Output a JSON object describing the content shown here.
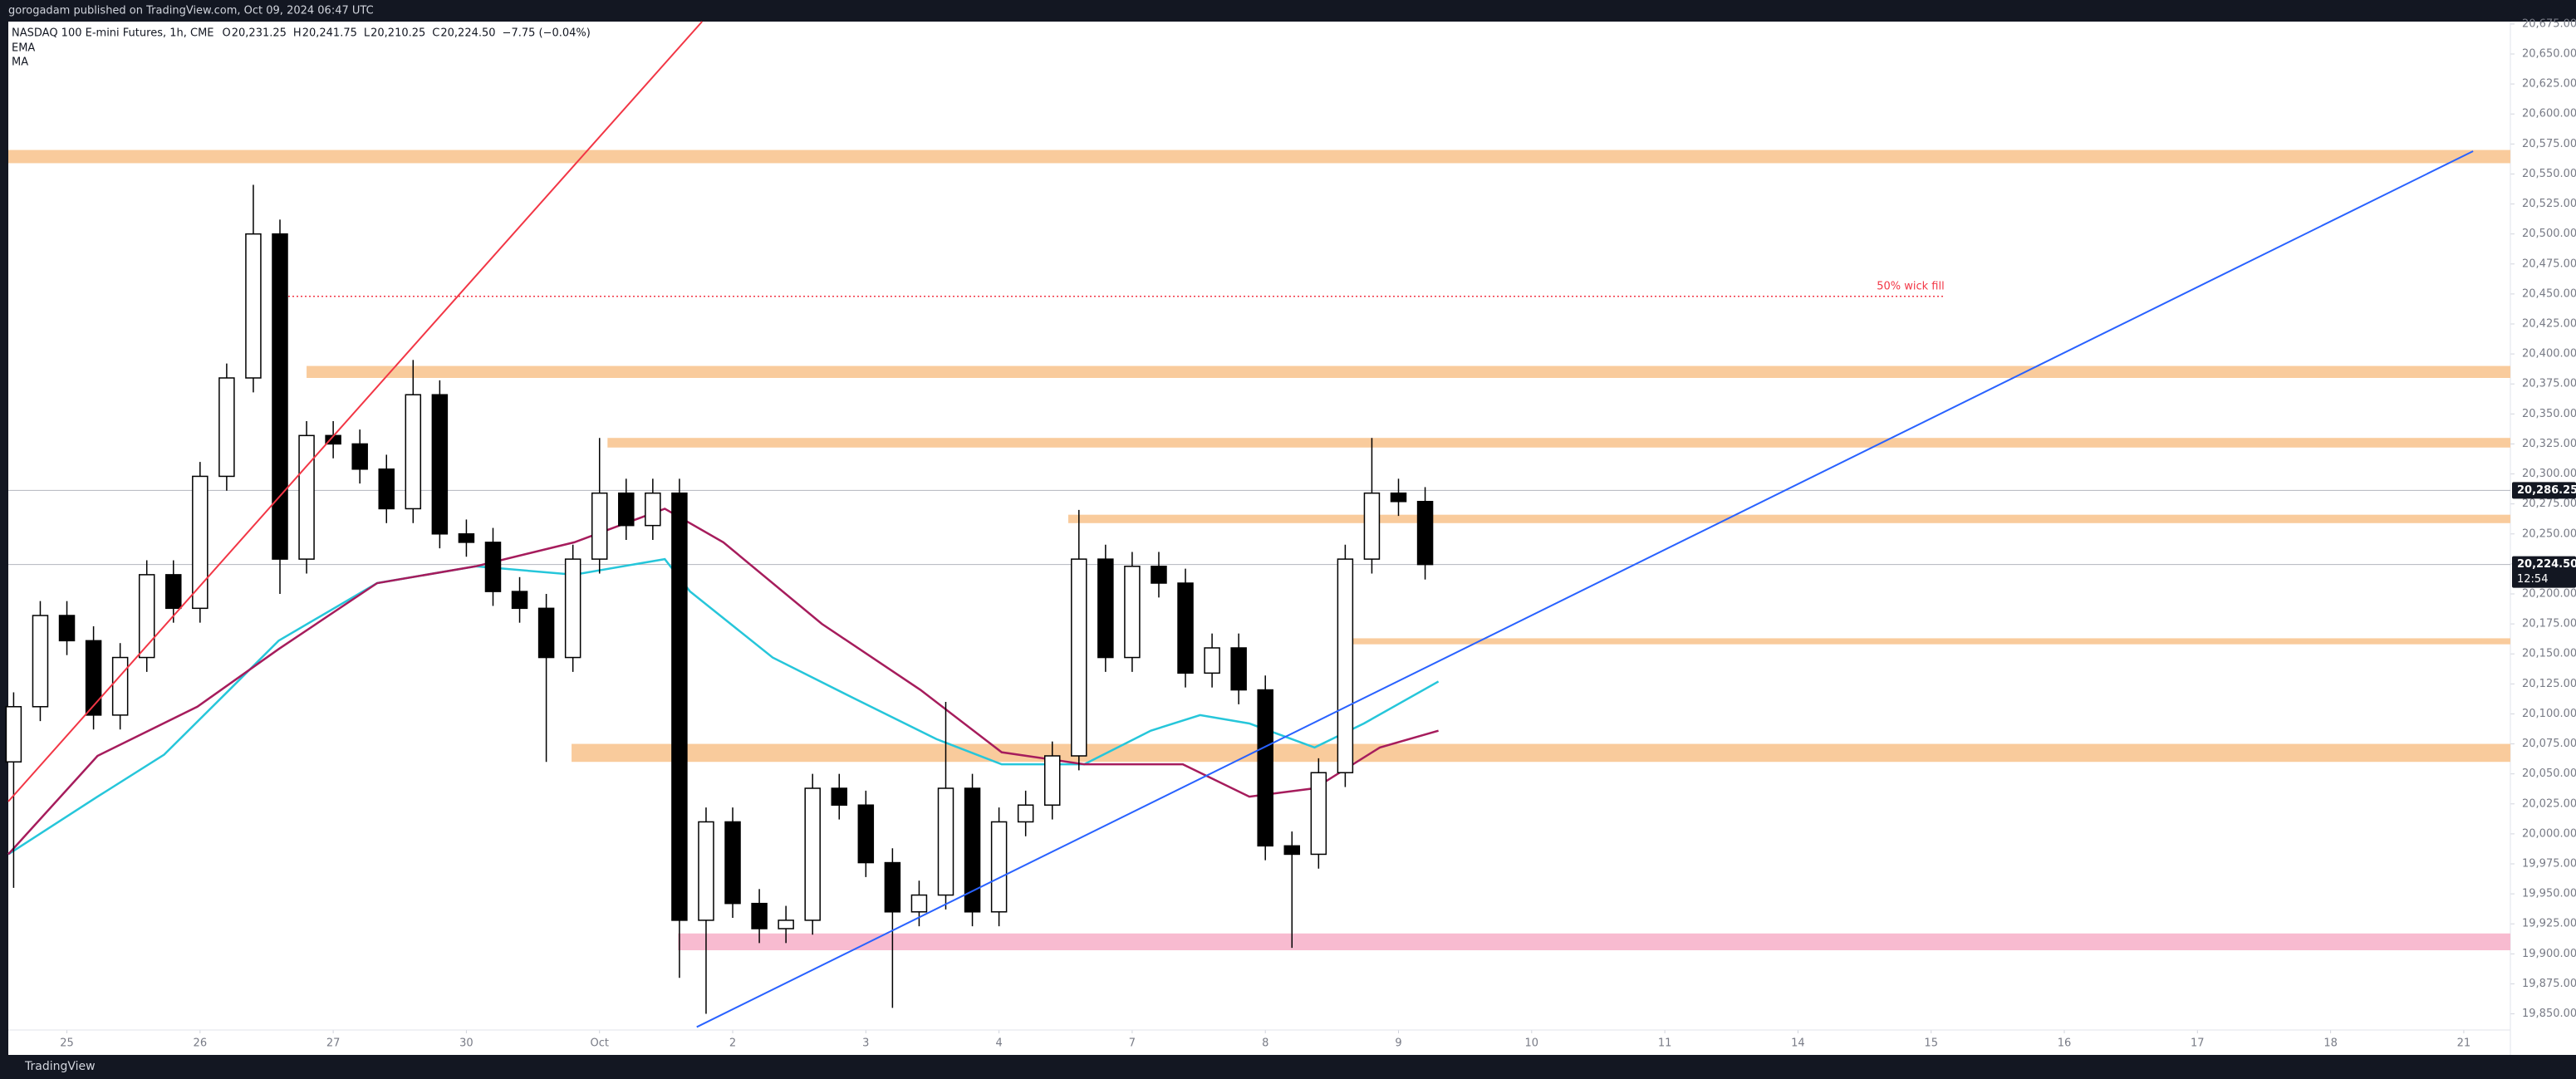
{
  "chart_data": {
    "type": "candlestick",
    "publisher": "gorogadam published on TradingView.com, Oct 09, 2024 06:47 UTC",
    "symbol": "NASDAQ 100 E-mini Futures, 1h, CME",
    "ohlc": [
      {
        "key": "O",
        "text": "20,231.25"
      },
      {
        "key": "H",
        "text": "20,241.75"
      },
      {
        "key": "L",
        "text": "20,210.25"
      },
      {
        "key": "C",
        "text": "20,224.50"
      }
    ],
    "change": "−7.75 (−0.04%)",
    "brand": "TradingView",
    "xlim": [
      -0.44,
      18.35
    ],
    "ylim": [
      19840,
      20677
    ],
    "xticks": [
      {
        "value": 0,
        "label": "25"
      },
      {
        "value": 1,
        "label": "26"
      },
      {
        "value": 2,
        "label": "27"
      },
      {
        "value": 3,
        "label": "30"
      },
      {
        "value": 4,
        "label": "Oct"
      },
      {
        "value": 5,
        "label": "2"
      },
      {
        "value": 6,
        "label": "3"
      },
      {
        "value": 7,
        "label": "4"
      },
      {
        "value": 8,
        "label": "7"
      },
      {
        "value": 9,
        "label": "8"
      },
      {
        "value": 10,
        "label": "9"
      },
      {
        "value": 11,
        "label": "10"
      },
      {
        "value": 12,
        "label": "11"
      },
      {
        "value": 13,
        "label": "14"
      },
      {
        "value": 14,
        "label": "15"
      },
      {
        "value": 15,
        "label": "16"
      },
      {
        "value": 16,
        "label": "17"
      },
      {
        "value": 17,
        "label": "18"
      },
      {
        "value": 18,
        "label": "21"
      }
    ],
    "yticks": [
      {
        "value": 19850,
        "label": "19,850.00"
      },
      {
        "value": 19875,
        "label": "19,875.00"
      },
      {
        "value": 19900,
        "label": "19,900.00"
      },
      {
        "value": 19925,
        "label": "19,925.00"
      },
      {
        "value": 19950,
        "label": "19,950.00"
      },
      {
        "value": 19975,
        "label": "19,975.00"
      },
      {
        "value": 20000,
        "label": "20,000.00"
      },
      {
        "value": 20025,
        "label": "20,025.00"
      },
      {
        "value": 20050,
        "label": "20,050.00"
      },
      {
        "value": 20075,
        "label": "20,075.00"
      },
      {
        "value": 20100,
        "label": "20,100.00"
      },
      {
        "value": 20125,
        "label": "20,125.00"
      },
      {
        "value": 20150,
        "label": "20,150.00"
      },
      {
        "value": 20175,
        "label": "20,175.00"
      },
      {
        "value": 20200,
        "label": "20,200.00"
      },
      {
        "value": 20225,
        "label": "20,225.00"
      },
      {
        "value": 20250,
        "label": "20,250.00"
      },
      {
        "value": 20275,
        "label": "20,275.00"
      },
      {
        "value": 20300,
        "label": "20,300.00"
      },
      {
        "value": 20325,
        "label": "20,325.00"
      },
      {
        "value": 20350,
        "label": "20,350.00"
      },
      {
        "value": 20375,
        "label": "20,375.00"
      },
      {
        "value": 20400,
        "label": "20,400.00"
      },
      {
        "value": 20425,
        "label": "20,425.00"
      },
      {
        "value": 20450,
        "label": "20,450.00"
      },
      {
        "value": 20475,
        "label": "20,475.00"
      },
      {
        "value": 20500,
        "label": "20,500.00"
      },
      {
        "value": 20525,
        "label": "20,525.00"
      },
      {
        "value": 20550,
        "label": "20,550.00"
      },
      {
        "value": 20575,
        "label": "20,575.00"
      },
      {
        "value": 20600,
        "label": "20,600.00"
      },
      {
        "value": 20625,
        "label": "20,625.00"
      },
      {
        "value": 20650,
        "label": "20,650.00"
      },
      {
        "value": 20675,
        "label": "20,675.00"
      }
    ],
    "candles": {
      "up_color": "#ffffff",
      "down_color": "#000000",
      "border_color": "#000000",
      "x": [
        -0.4,
        -0.2,
        0,
        0.2,
        0.4,
        0.6,
        0.8,
        1.0,
        1.2,
        1.4,
        1.6,
        1.8,
        2.0,
        2.2,
        2.4,
        2.6,
        2.8,
        3.0,
        3.2,
        3.4,
        3.6,
        3.8,
        4.0,
        4.2,
        4.4,
        4.6,
        4.8,
        5.0,
        5.2,
        5.4,
        5.6,
        5.8,
        6.0,
        6.2,
        6.4,
        6.6,
        6.8,
        7.0,
        7.2,
        7.4,
        7.6,
        7.8,
        8.0,
        8.2,
        8.4,
        8.6,
        8.8,
        9.0,
        9.2,
        9.4,
        9.6,
        9.8,
        10.0,
        10.2
      ],
      "open": [
        20060,
        20106,
        20182,
        20161,
        20099,
        20147,
        20216,
        20188,
        20298,
        20380,
        20500,
        20229,
        20332,
        20325,
        20304,
        20271,
        20366,
        20250,
        20243,
        20202,
        20188,
        20147,
        20229,
        20284,
        20257,
        20284,
        19928,
        20010,
        19942,
        19921,
        19928,
        20038,
        20024,
        19976,
        19935,
        19949,
        20038,
        19935,
        20010,
        20024,
        20065,
        20229,
        20147,
        20223,
        20209,
        20134,
        20155,
        20120,
        19990,
        19983,
        20051,
        20229,
        20284,
        20277
      ],
      "high": [
        20118,
        20194,
        20194,
        20173,
        20159,
        20228,
        20228,
        20310,
        20392,
        20541,
        20512,
        20344,
        20344,
        20337,
        20316,
        20395,
        20378,
        20262,
        20255,
        20214,
        20200,
        20241,
        20330,
        20296,
        20296,
        20296,
        20022,
        20022,
        19954,
        19940,
        20050,
        20050,
        20036,
        19988,
        19961,
        20110,
        20050,
        20022,
        20036,
        20077,
        20270,
        20241,
        20235,
        20235,
        20221,
        20167,
        20167,
        20132,
        20002,
        20063,
        20241,
        20330,
        20296,
        20289
      ],
      "low": [
        19955,
        20094,
        20149,
        20087,
        20087,
        20135,
        20176,
        20176,
        20286,
        20368,
        20200,
        20217,
        20313,
        20292,
        20259,
        20259,
        20238,
        20231,
        20190,
        20176,
        20060,
        20135,
        20217,
        20245,
        20245,
        19880,
        19850,
        19930,
        19909,
        19909,
        19916,
        20012,
        19964,
        19855,
        19923,
        19937,
        19923,
        19923,
        19998,
        20012,
        20053,
        20135,
        20135,
        20197,
        20122,
        20122,
        20108,
        19978,
        19905,
        19971,
        20039,
        20217,
        20265,
        20212
      ],
      "close": [
        20106,
        20182,
        20161,
        20099,
        20147,
        20216,
        20188,
        20298,
        20380,
        20500,
        20229,
        20332,
        20325,
        20304,
        20271,
        20366,
        20250,
        20243,
        20202,
        20188,
        20147,
        20229,
        20284,
        20257,
        20284,
        19928,
        20010,
        19942,
        19921,
        19928,
        20038,
        20024,
        19976,
        19935,
        19949,
        20038,
        19935,
        20010,
        20024,
        20065,
        20229,
        20147,
        20223,
        20209,
        20134,
        20155,
        20120,
        19990,
        19983,
        20051,
        20229,
        20284,
        20277,
        20224.5
      ]
    },
    "series": [
      {
        "name": "EMA",
        "color": "#26c6da",
        "x": [
          -0.44,
          0.23,
          0.73,
          1.22,
          1.59,
          2.33,
          3.07,
          3.81,
          4.49,
          4.68,
          5.3,
          5.91,
          6.53,
          7.02,
          7.64,
          8.14,
          8.51,
          8.88,
          9.37,
          9.74,
          10.3
        ],
        "values": [
          19983,
          20031,
          20066,
          20120,
          20161,
          20209,
          20223,
          20216,
          20229,
          20202,
          20147,
          20113,
          20079,
          20058,
          20058,
          20086,
          20099,
          20092,
          20072,
          20092,
          20127
        ]
      },
      {
        "name": "MA",
        "color": "#a61c5c",
        "x": [
          -0.44,
          0.23,
          0.98,
          1.59,
          2.33,
          3.07,
          3.81,
          4.49,
          4.93,
          5.67,
          6.41,
          7.02,
          7.64,
          8.38,
          8.88,
          9.37,
          9.86,
          10.3
        ],
        "values": [
          19983,
          20065,
          20106,
          20154,
          20209,
          20223,
          20243,
          20271,
          20243,
          20175,
          20120,
          20068,
          20058,
          20058,
          20031,
          20038,
          20072,
          20086
        ]
      }
    ],
    "zones": [
      {
        "x_start": -0.44,
        "y_bottom": 20559,
        "y_top": 20570,
        "color": "#f9cb9c"
      },
      {
        "x_start": 1.8,
        "y_bottom": 20380,
        "y_top": 20390,
        "color": "#f9cb9c"
      },
      {
        "x_start": 4.06,
        "y_bottom": 20322,
        "y_top": 20330,
        "color": "#f9cb9c"
      },
      {
        "x_start": 7.52,
        "y_bottom": 20259,
        "y_top": 20266,
        "color": "#f9cb9c"
      },
      {
        "x_start": 9.56,
        "y_bottom": 20158,
        "y_top": 20163,
        "color": "#f9cb9c"
      },
      {
        "x_start": 3.79,
        "y_bottom": 20060,
        "y_top": 20075,
        "color": "#f9cb9c"
      },
      {
        "x_start": 4.59,
        "y_bottom": 19903,
        "y_top": 19917,
        "color": "#f8bbd0"
      }
    ],
    "trendlines": [
      {
        "x": [
          -0.44,
          4.77
        ],
        "y": [
          20027,
          20677
        ],
        "color": "#f23645"
      },
      {
        "x": [
          4.73,
          18.07
        ],
        "y": [
          19839,
          20569
        ],
        "color": "#2962ff"
      }
    ],
    "annotations": [
      {
        "text": "50% wick fill",
        "x_start": 1.6,
        "x_end": 14.1,
        "y": 20448,
        "color": "#f23645"
      }
    ],
    "price_lines": [
      {
        "value": 20286.25,
        "label": "20,286.25",
        "color": "#b2b5be"
      },
      {
        "value": 20224.5,
        "label": "20,224.50",
        "countdown": "12:54",
        "color": "#b2b5be"
      }
    ]
  }
}
